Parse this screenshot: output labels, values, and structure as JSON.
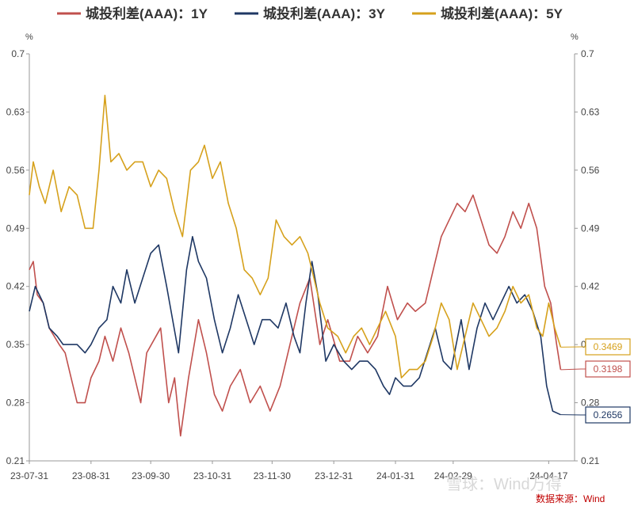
{
  "chart_data": {
    "type": "line",
    "title": "",
    "y_unit_left": "%",
    "y_unit_right": "%",
    "ylim": [
      0.21,
      0.7
    ],
    "yticks": [
      "0.7",
      "0.63",
      "0.56",
      "0.49",
      "0.42",
      "0.35",
      "0.28",
      "0.21"
    ],
    "xlim": [
      "2023-07-31",
      "2024-04-30"
    ],
    "xticks": [
      {
        "date": "2023-07-31",
        "label": "23-07-31"
      },
      {
        "date": "2023-08-31",
        "label": "23-08-31"
      },
      {
        "date": "2023-09-30",
        "label": "23-09-30"
      },
      {
        "date": "2023-10-31",
        "label": "23-10-31"
      },
      {
        "date": "2023-11-30",
        "label": "23-11-30"
      },
      {
        "date": "2023-12-31",
        "label": "23-12-31"
      },
      {
        "date": "2024-01-31",
        "label": "24-01-31"
      },
      {
        "date": "2024-02-29",
        "label": "24-02-29"
      },
      {
        "date": "2024-04-17",
        "label": "24-04-17"
      }
    ],
    "legend_position": "top",
    "grid": false,
    "series": [
      {
        "name": "城投利差(AAA)：1Y",
        "color": "#c0504d",
        "end_label": "0.3198",
        "points": [
          [
            "2023-07-31",
            0.44
          ],
          [
            "2023-08-02",
            0.45
          ],
          [
            "2023-08-04",
            0.41
          ],
          [
            "2023-08-07",
            0.4
          ],
          [
            "2023-08-10",
            0.37
          ],
          [
            "2023-08-15",
            0.35
          ],
          [
            "2023-08-18",
            0.34
          ],
          [
            "2023-08-21",
            0.31
          ],
          [
            "2023-08-24",
            0.28
          ],
          [
            "2023-08-28",
            0.28
          ],
          [
            "2023-08-31",
            0.31
          ],
          [
            "2023-09-04",
            0.33
          ],
          [
            "2023-09-07",
            0.36
          ],
          [
            "2023-09-11",
            0.33
          ],
          [
            "2023-09-15",
            0.37
          ],
          [
            "2023-09-19",
            0.34
          ],
          [
            "2023-09-22",
            0.31
          ],
          [
            "2023-09-25",
            0.28
          ],
          [
            "2023-09-28",
            0.34
          ],
          [
            "2023-10-05",
            0.37
          ],
          [
            "2023-10-09",
            0.28
          ],
          [
            "2023-10-12",
            0.31
          ],
          [
            "2023-10-15",
            0.24
          ],
          [
            "2023-10-19",
            0.31
          ],
          [
            "2023-10-24",
            0.38
          ],
          [
            "2023-10-28",
            0.34
          ],
          [
            "2023-11-01",
            0.29
          ],
          [
            "2023-11-05",
            0.27
          ],
          [
            "2023-11-09",
            0.3
          ],
          [
            "2023-11-14",
            0.32
          ],
          [
            "2023-11-19",
            0.28
          ],
          [
            "2023-11-24",
            0.3
          ],
          [
            "2023-11-29",
            0.27
          ],
          [
            "2023-12-04",
            0.3
          ],
          [
            "2023-12-09",
            0.35
          ],
          [
            "2023-12-14",
            0.4
          ],
          [
            "2023-12-19",
            0.43
          ],
          [
            "2023-12-24",
            0.35
          ],
          [
            "2023-12-28",
            0.38
          ],
          [
            "2024-01-03",
            0.33
          ],
          [
            "2024-01-08",
            0.33
          ],
          [
            "2024-01-12",
            0.36
          ],
          [
            "2024-01-17",
            0.34
          ],
          [
            "2024-01-22",
            0.36
          ],
          [
            "2024-01-27",
            0.42
          ],
          [
            "2024-02-01",
            0.38
          ],
          [
            "2024-02-06",
            0.4
          ],
          [
            "2024-02-10",
            0.39
          ],
          [
            "2024-02-15",
            0.4
          ],
          [
            "2024-02-19",
            0.44
          ],
          [
            "2024-02-23",
            0.48
          ],
          [
            "2024-02-27",
            0.5
          ],
          [
            "2024-03-02",
            0.52
          ],
          [
            "2024-03-06",
            0.51
          ],
          [
            "2024-03-10",
            0.53
          ],
          [
            "2024-03-14",
            0.5
          ],
          [
            "2024-03-18",
            0.47
          ],
          [
            "2024-03-22",
            0.46
          ],
          [
            "2024-03-26",
            0.48
          ],
          [
            "2024-03-30",
            0.51
          ],
          [
            "2024-04-03",
            0.49
          ],
          [
            "2024-04-07",
            0.52
          ],
          [
            "2024-04-11",
            0.49
          ],
          [
            "2024-04-15",
            0.42
          ],
          [
            "2024-04-18",
            0.4
          ],
          [
            "2024-04-21",
            0.35
          ],
          [
            "2024-04-23",
            0.3198
          ]
        ]
      },
      {
        "name": "城投利差(AAA)：3Y",
        "color": "#1f3864",
        "end_label": "0.2656",
        "points": [
          [
            "2023-07-31",
            0.39
          ],
          [
            "2023-08-03",
            0.42
          ],
          [
            "2023-08-07",
            0.4
          ],
          [
            "2023-08-10",
            0.37
          ],
          [
            "2023-08-14",
            0.36
          ],
          [
            "2023-08-17",
            0.35
          ],
          [
            "2023-08-21",
            0.35
          ],
          [
            "2023-08-24",
            0.35
          ],
          [
            "2023-08-28",
            0.34
          ],
          [
            "2023-08-31",
            0.35
          ],
          [
            "2023-09-04",
            0.37
          ],
          [
            "2023-09-08",
            0.38
          ],
          [
            "2023-09-11",
            0.42
          ],
          [
            "2023-09-15",
            0.4
          ],
          [
            "2023-09-18",
            0.44
          ],
          [
            "2023-09-22",
            0.4
          ],
          [
            "2023-09-26",
            0.43
          ],
          [
            "2023-09-30",
            0.46
          ],
          [
            "2023-10-04",
            0.47
          ],
          [
            "2023-10-08",
            0.42
          ],
          [
            "2023-10-11",
            0.38
          ],
          [
            "2023-10-14",
            0.34
          ],
          [
            "2023-10-18",
            0.44
          ],
          [
            "2023-10-21",
            0.48
          ],
          [
            "2023-10-24",
            0.45
          ],
          [
            "2023-10-28",
            0.43
          ],
          [
            "2023-11-01",
            0.38
          ],
          [
            "2023-11-05",
            0.34
          ],
          [
            "2023-11-09",
            0.37
          ],
          [
            "2023-11-13",
            0.41
          ],
          [
            "2023-11-17",
            0.38
          ],
          [
            "2023-11-21",
            0.35
          ],
          [
            "2023-11-25",
            0.38
          ],
          [
            "2023-11-29",
            0.38
          ],
          [
            "2023-12-03",
            0.37
          ],
          [
            "2023-12-07",
            0.4
          ],
          [
            "2023-12-11",
            0.36
          ],
          [
            "2023-12-14",
            0.34
          ],
          [
            "2023-12-17",
            0.4
          ],
          [
            "2023-12-20",
            0.45
          ],
          [
            "2023-12-23",
            0.41
          ],
          [
            "2023-12-27",
            0.33
          ],
          [
            "2023-12-31",
            0.35
          ],
          [
            "2024-01-05",
            0.33
          ],
          [
            "2024-01-09",
            0.32
          ],
          [
            "2024-01-13",
            0.33
          ],
          [
            "2024-01-17",
            0.33
          ],
          [
            "2024-01-21",
            0.32
          ],
          [
            "2024-01-25",
            0.3
          ],
          [
            "2024-01-28",
            0.29
          ],
          [
            "2024-01-31",
            0.31
          ],
          [
            "2024-02-04",
            0.3
          ],
          [
            "2024-02-08",
            0.3
          ],
          [
            "2024-02-12",
            0.31
          ],
          [
            "2024-02-16",
            0.34
          ],
          [
            "2024-02-20",
            0.37
          ],
          [
            "2024-02-24",
            0.33
          ],
          [
            "2024-02-28",
            0.32
          ],
          [
            "2024-03-04",
            0.38
          ],
          [
            "2024-03-08",
            0.32
          ],
          [
            "2024-03-12",
            0.37
          ],
          [
            "2024-03-16",
            0.4
          ],
          [
            "2024-03-20",
            0.38
          ],
          [
            "2024-03-24",
            0.4
          ],
          [
            "2024-03-28",
            0.42
          ],
          [
            "2024-04-01",
            0.4
          ],
          [
            "2024-04-05",
            0.41
          ],
          [
            "2024-04-09",
            0.39
          ],
          [
            "2024-04-13",
            0.36
          ],
          [
            "2024-04-16",
            0.3
          ],
          [
            "2024-04-19",
            0.27
          ],
          [
            "2024-04-23",
            0.2656
          ]
        ]
      },
      {
        "name": "城投利差(AAA)：5Y",
        "color": "#d6a11c",
        "end_label": "0.3469",
        "points": [
          [
            "2023-07-31",
            0.53
          ],
          [
            "2023-08-02",
            0.57
          ],
          [
            "2023-08-05",
            0.54
          ],
          [
            "2023-08-08",
            0.52
          ],
          [
            "2023-08-12",
            0.56
          ],
          [
            "2023-08-16",
            0.51
          ],
          [
            "2023-08-20",
            0.54
          ],
          [
            "2023-08-24",
            0.53
          ],
          [
            "2023-08-28",
            0.49
          ],
          [
            "2023-09-01",
            0.49
          ],
          [
            "2023-09-04",
            0.56
          ],
          [
            "2023-09-07",
            0.65
          ],
          [
            "2023-09-10",
            0.57
          ],
          [
            "2023-09-14",
            0.58
          ],
          [
            "2023-09-18",
            0.56
          ],
          [
            "2023-09-22",
            0.57
          ],
          [
            "2023-09-26",
            0.57
          ],
          [
            "2023-09-30",
            0.54
          ],
          [
            "2023-10-04",
            0.56
          ],
          [
            "2023-10-08",
            0.55
          ],
          [
            "2023-10-12",
            0.51
          ],
          [
            "2023-10-16",
            0.48
          ],
          [
            "2023-10-20",
            0.56
          ],
          [
            "2023-10-24",
            0.57
          ],
          [
            "2023-10-27",
            0.59
          ],
          [
            "2023-10-31",
            0.55
          ],
          [
            "2023-11-04",
            0.57
          ],
          [
            "2023-11-08",
            0.52
          ],
          [
            "2023-11-12",
            0.49
          ],
          [
            "2023-11-16",
            0.44
          ],
          [
            "2023-11-20",
            0.43
          ],
          [
            "2023-11-24",
            0.41
          ],
          [
            "2023-11-28",
            0.43
          ],
          [
            "2023-12-02",
            0.5
          ],
          [
            "2023-12-06",
            0.48
          ],
          [
            "2023-12-10",
            0.47
          ],
          [
            "2023-12-14",
            0.48
          ],
          [
            "2023-12-18",
            0.46
          ],
          [
            "2023-12-21",
            0.43
          ],
          [
            "2023-12-24",
            0.4
          ],
          [
            "2023-12-28",
            0.37
          ],
          [
            "2024-01-02",
            0.36
          ],
          [
            "2024-01-06",
            0.34
          ],
          [
            "2024-01-10",
            0.36
          ],
          [
            "2024-01-14",
            0.37
          ],
          [
            "2024-01-18",
            0.35
          ],
          [
            "2024-01-22",
            0.37
          ],
          [
            "2024-01-26",
            0.39
          ],
          [
            "2024-01-31",
            0.36
          ],
          [
            "2024-02-03",
            0.31
          ],
          [
            "2024-02-07",
            0.32
          ],
          [
            "2024-02-11",
            0.32
          ],
          [
            "2024-02-15",
            0.33
          ],
          [
            "2024-02-19",
            0.36
          ],
          [
            "2024-02-23",
            0.4
          ],
          [
            "2024-02-27",
            0.38
          ],
          [
            "2024-03-02",
            0.32
          ],
          [
            "2024-03-06",
            0.36
          ],
          [
            "2024-03-10",
            0.4
          ],
          [
            "2024-03-14",
            0.38
          ],
          [
            "2024-03-18",
            0.36
          ],
          [
            "2024-03-22",
            0.37
          ],
          [
            "2024-03-26",
            0.39
          ],
          [
            "2024-03-30",
            0.42
          ],
          [
            "2024-04-03",
            0.4
          ],
          [
            "2024-04-07",
            0.41
          ],
          [
            "2024-04-11",
            0.37
          ],
          [
            "2024-04-14",
            0.36
          ],
          [
            "2024-04-17",
            0.4
          ],
          [
            "2024-04-20",
            0.37
          ],
          [
            "2024-04-23",
            0.3469
          ]
        ]
      }
    ]
  },
  "source_note": "数据来源：Wind",
  "watermark": "雪球：Wind万得"
}
